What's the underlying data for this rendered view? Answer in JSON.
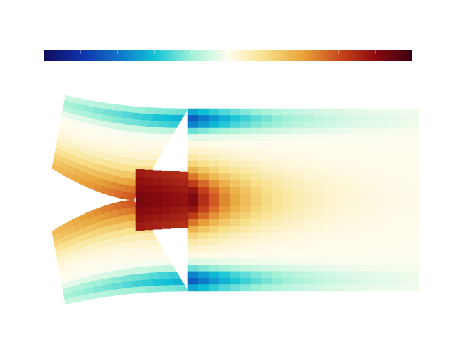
{
  "figure": {
    "colormap": {
      "stops": [
        "#100c5e",
        "#1030a8",
        "#0f72c8",
        "#10c2d6",
        "#9ff0d6",
        "#fffdf0",
        "#f8e08a",
        "#e9a63c",
        "#cc4a1c",
        "#8a0a10",
        "#3a0010"
      ],
      "ticks": 9,
      "ticks_shown": true
    },
    "field": {
      "cols": 34,
      "rows": 28,
      "color_inner": "#3a0010",
      "color_outer_band": "#100c5e",
      "color_outlet": "#fffdf2"
    }
  }
}
